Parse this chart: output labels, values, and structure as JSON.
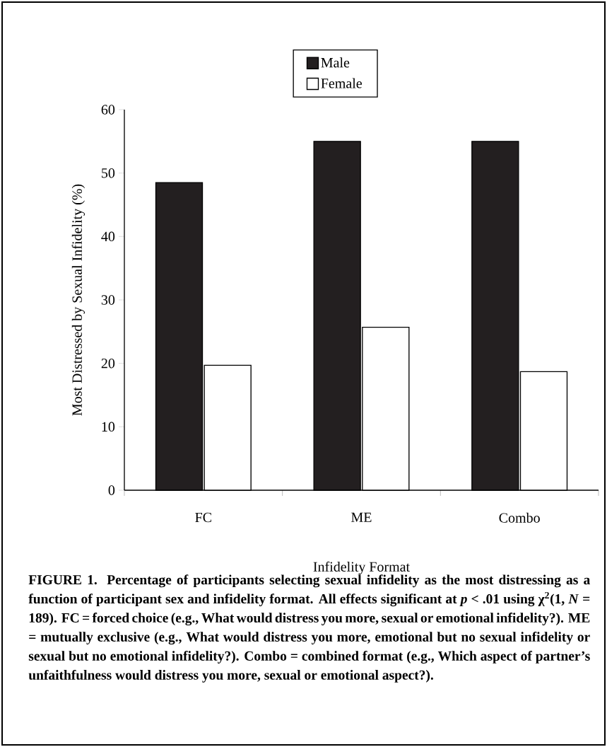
{
  "chart_data": {
    "type": "bar",
    "xlabel": "Infidelity Format",
    "ylabel": "Most Distressed by Sexual Infidelity (%)",
    "categories": [
      "FC",
      "ME",
      "Combo"
    ],
    "series": [
      {
        "name": "Male",
        "color": "#231f20",
        "values": [
          48.5,
          55.0,
          55.0
        ]
      },
      {
        "name": "Female",
        "color": "#ffffff",
        "values": [
          19.7,
          25.7,
          18.7
        ]
      }
    ],
    "ylim": [
      0,
      60
    ],
    "yticks": [
      0,
      10,
      20,
      30,
      40,
      50,
      60
    ],
    "legend": "top",
    "annotations": [
      "FIGURE 1. Percentage of participants selecting sexual infidelity as the most distressing as a function of participant sex and infidelity format. All effects significant at *p* < .01 using χ$^{2}$(1, *N* = 189). FC = forced choice (e.g., What would distress you more, sexual or emotional infidelity?). ME = mutually exclusive (e.g., What would distress you more, emotional but no sexual infidelity or sexual but no emotional infidelity?). Combo = combined format (e.g., Which aspect of partner’s unfaithfulness would distress you more, sexual or emotional aspect?)."
    ]
  }
}
